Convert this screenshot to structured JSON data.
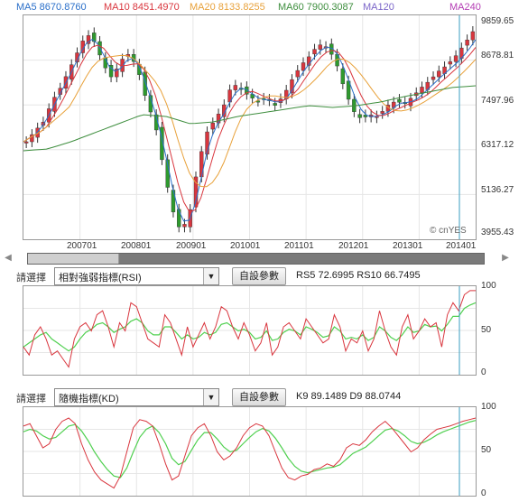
{
  "ma_legend": [
    {
      "label": "MA5 8670.8760",
      "color": "#2a6fc9"
    },
    {
      "label": "MA10 8451.4970",
      "color": "#d9363e"
    },
    {
      "label": "MA20 8133.8255",
      "color": "#e8a13a"
    },
    {
      "label": "MA60 7900.3087",
      "color": "#3e8e3e"
    },
    {
      "label": "MA120",
      "color": "#7a64c8"
    },
    {
      "label": "MA240",
      "color": "#b43cb4"
    }
  ],
  "price_axis": [
    "9859.65",
    "8678.81",
    "7497.96",
    "6317.12",
    "5136.27",
    "3955.43"
  ],
  "date_axis": [
    "200701",
    "200801",
    "200901",
    "201001",
    "201101",
    "201201",
    "201301",
    "201401"
  ],
  "watermark": "© cnYES",
  "scroll": {
    "left_arrow": "◀",
    "right_arrow": "▶"
  },
  "rsi_panel": {
    "select_label": "請選擇",
    "selected": "相對強弱指標(RSI)",
    "button": "自設參數",
    "values": "RS5 72.6995   RS10 66.7495",
    "y_ticks": [
      "100",
      "50",
      "0"
    ]
  },
  "kd_panel": {
    "select_label": "請選擇",
    "selected": "隨機指標(KD)",
    "button": "自設參數",
    "values": "K9 89.1489   D9 88.0744",
    "y_ticks": [
      "100",
      "50",
      "0"
    ]
  },
  "colors": {
    "up": "#d9363e",
    "down": "#2e9a2e",
    "cursor": "#3a9ec0",
    "rsi5": "#d9363e",
    "rsi10": "#50d050"
  }
}
